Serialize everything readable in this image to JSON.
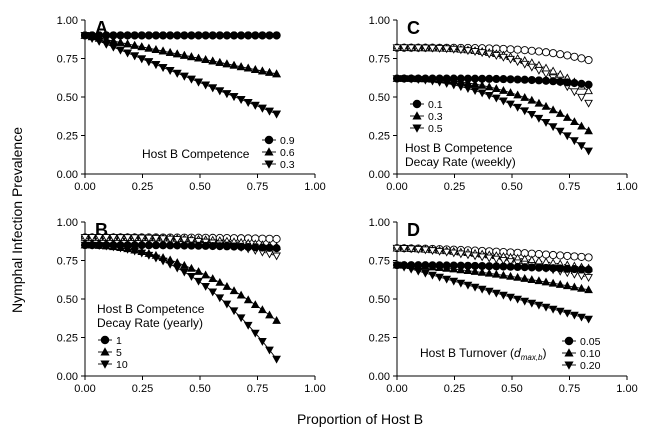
{
  "figure": {
    "ylabel": "Nymphal Infection Prevalence",
    "xlabel": "Proportion of Host B"
  },
  "chart_data": [
    {
      "type": "line",
      "panel_letter": "A",
      "xlim": [
        0,
        1
      ],
      "ylim": [
        0,
        1
      ],
      "xticks": [
        "0.00",
        "0.25",
        "0.50",
        "0.75",
        "1.00"
      ],
      "yticks": [
        "0.00",
        "0.25",
        "0.50",
        "0.75",
        "1.00"
      ],
      "legend_title": [
        "Host B Competence"
      ],
      "legend_position": "bottom-right",
      "series": [
        {
          "name": "0.9",
          "marker": "circle",
          "x": [
            0,
            0.833
          ],
          "y": [
            0.9,
            0.9
          ]
        },
        {
          "name": "0.6",
          "marker": "triangle-up",
          "x": [
            0,
            0.833
          ],
          "y": [
            0.9,
            0.65
          ]
        },
        {
          "name": "0.3",
          "marker": "triangle-down",
          "x": [
            0,
            0.833
          ],
          "y": [
            0.9,
            0.39
          ]
        }
      ],
      "open_series": [
        {
          "marker": "circle",
          "x": [
            0,
            0.833
          ],
          "y": [
            0.9,
            0.9
          ]
        },
        {
          "marker": "triangle-up",
          "x": [
            0,
            0.833
          ],
          "y": [
            0.9,
            0.65
          ]
        },
        {
          "marker": "triangle-down",
          "x": [
            0,
            0.833
          ],
          "y": [
            0.9,
            0.39
          ]
        }
      ]
    },
    {
      "type": "line",
      "panel_letter": "C",
      "xlim": [
        0,
        1
      ],
      "ylim": [
        0,
        1
      ],
      "xticks": [
        "0.00",
        "0.25",
        "0.50",
        "0.75",
        "1.00"
      ],
      "yticks": [
        "0.00",
        "0.25",
        "0.50",
        "0.75",
        "1.00"
      ],
      "legend_title": [
        "Host B Competence",
        "Decay Rate (weekly)"
      ],
      "legend_position": "bottom-left",
      "series": [
        {
          "name": "0.1",
          "marker": "circle",
          "x": [
            0,
            0.833
          ],
          "y": [
            0.62,
            0.58
          ],
          "curve": 4
        },
        {
          "name": "0.3",
          "marker": "triangle-up",
          "x": [
            0,
            0.833
          ],
          "y": [
            0.62,
            0.28
          ],
          "curve": 2.5
        },
        {
          "name": "0.5",
          "marker": "triangle-down",
          "x": [
            0,
            0.833
          ],
          "y": [
            0.62,
            0.15
          ],
          "curve": 2
        }
      ],
      "open_series": [
        {
          "marker": "circle",
          "x": [
            0,
            0.833
          ],
          "y": [
            0.82,
            0.74
          ],
          "curve": 4
        },
        {
          "marker": "triangle-up",
          "x": [
            0,
            0.833
          ],
          "y": [
            0.82,
            0.54
          ],
          "curve": 3
        },
        {
          "marker": "triangle-down",
          "x": [
            0,
            0.833
          ],
          "y": [
            0.82,
            0.46
          ],
          "curve": 3
        }
      ]
    },
    {
      "type": "line",
      "panel_letter": "B",
      "xlim": [
        0,
        1
      ],
      "ylim": [
        0,
        1
      ],
      "xticks": [
        "0.00",
        "0.25",
        "0.50",
        "0.75",
        "1.00"
      ],
      "yticks": [
        "0.00",
        "0.25",
        "0.50",
        "0.75",
        "1.00"
      ],
      "legend_title": [
        "Host B Competence",
        "Decay Rate (yearly)"
      ],
      "legend_position": "bottom-left",
      "series": [
        {
          "name": "1",
          "marker": "circle",
          "x": [
            0,
            0.833
          ],
          "y": [
            0.85,
            0.83
          ],
          "curve": 3
        },
        {
          "name": "5",
          "marker": "triangle-up",
          "x": [
            0,
            0.833
          ],
          "y": [
            0.85,
            0.36
          ],
          "curve": 2
        },
        {
          "name": "10",
          "marker": "triangle-down",
          "x": [
            0,
            0.833
          ],
          "y": [
            0.85,
            0.11
          ],
          "curve": 2.2
        }
      ],
      "open_series": [
        {
          "marker": "circle",
          "x": [
            0,
            0.833
          ],
          "y": [
            0.9,
            0.89
          ],
          "curve": 3
        },
        {
          "marker": "triangle-up",
          "x": [
            0,
            0.833
          ],
          "y": [
            0.9,
            0.84
          ],
          "curve": 3
        },
        {
          "marker": "triangle-down",
          "x": [
            0,
            0.833
          ],
          "y": [
            0.9,
            0.78
          ],
          "curve": 3
        }
      ]
    },
    {
      "type": "line",
      "panel_letter": "D",
      "xlim": [
        0,
        1
      ],
      "ylim": [
        0,
        1
      ],
      "xticks": [
        "0.00",
        "0.25",
        "0.50",
        "0.75",
        "1.00"
      ],
      "yticks": [
        "0.00",
        "0.25",
        "0.50",
        "0.75",
        "1.00"
      ],
      "legend_title": [
        "Host B Turnover ("
      ],
      "legend_position": "bottom-right",
      "series": [
        {
          "name": "0.05",
          "marker": "circle",
          "x": [
            0,
            0.833
          ],
          "y": [
            0.72,
            0.69
          ],
          "curve": 2
        },
        {
          "name": "0.10",
          "marker": "triangle-up",
          "x": [
            0,
            0.833
          ],
          "y": [
            0.72,
            0.56
          ],
          "curve": 1.5
        },
        {
          "name": "0.20",
          "marker": "triangle-down",
          "x": [
            0,
            0.833
          ],
          "y": [
            0.72,
            0.37
          ],
          "curve": 1
        }
      ],
      "open_series": [
        {
          "marker": "circle",
          "x": [
            0,
            0.833
          ],
          "y": [
            0.83,
            0.77
          ],
          "curve": 1.5
        },
        {
          "marker": "triangle-up",
          "x": [
            0,
            0.833
          ],
          "y": [
            0.83,
            0.7
          ],
          "curve": 1.5
        },
        {
          "marker": "triangle-down",
          "x": [
            0,
            0.833
          ],
          "y": [
            0.83,
            0.64
          ],
          "curve": 1.5
        }
      ]
    }
  ]
}
